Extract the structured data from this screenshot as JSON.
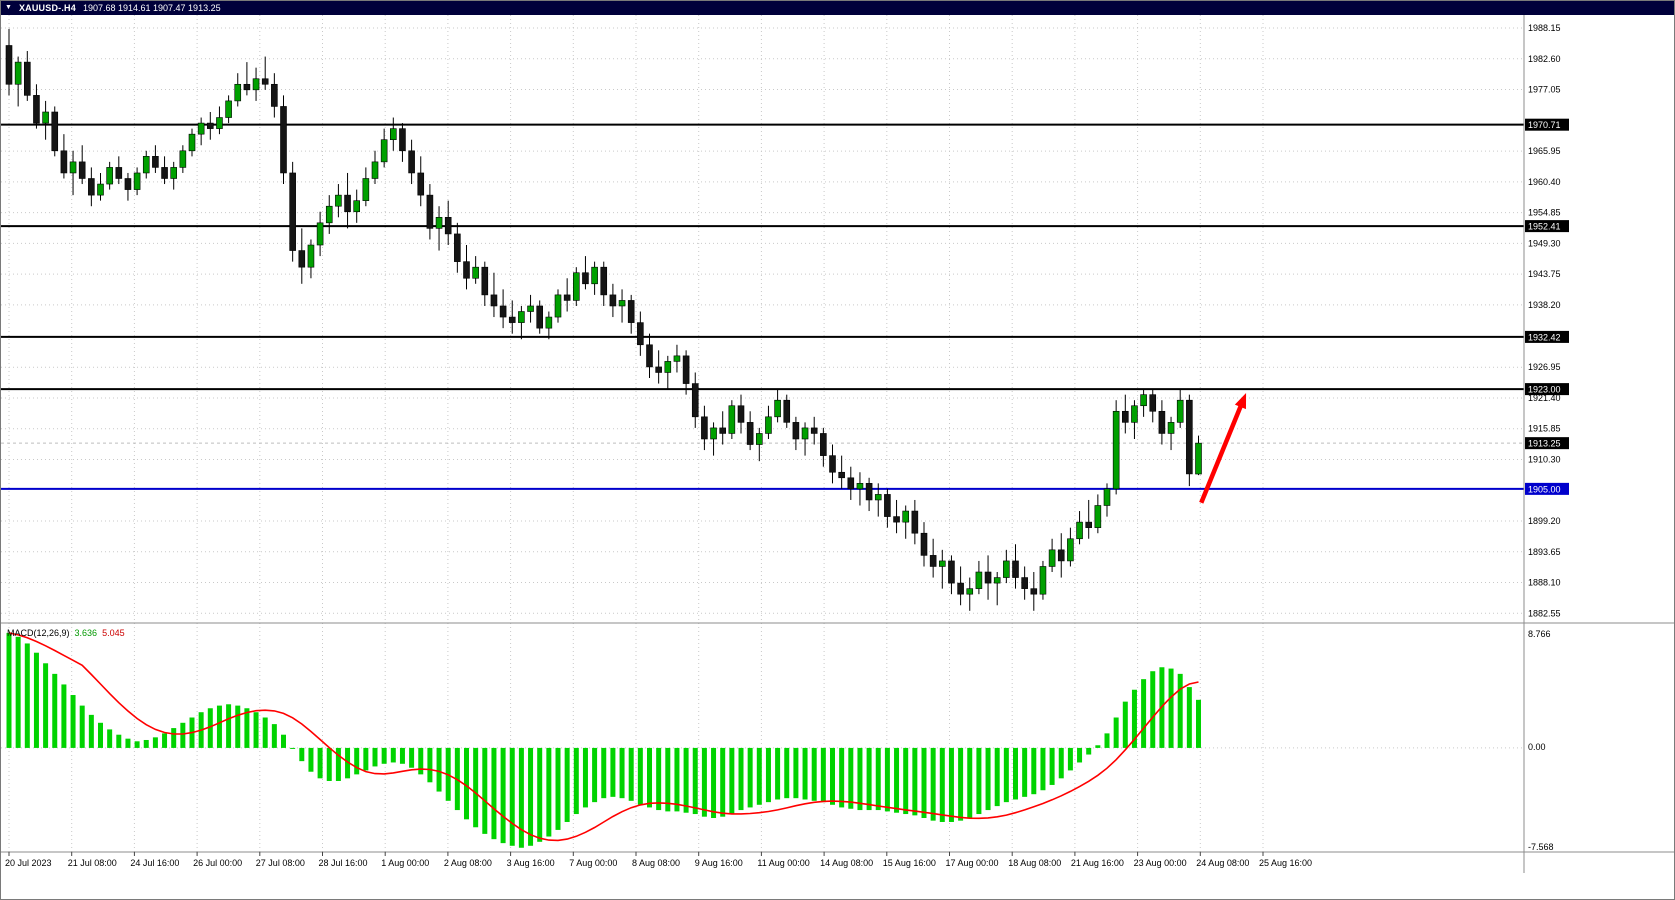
{
  "title_bar": {
    "symbol": "XAUUSD-.H4",
    "ohlc_text": "1907.68 1914.61 1907.47 1913.25"
  },
  "colors": {
    "title_bg": "#00003b",
    "bull": "#00a000",
    "bear": "#151515",
    "wick": "#000000",
    "grid": "#c9c9c9",
    "level_black": "#000000",
    "level_blue": "#0000cc",
    "bid_line": "#bdbdbd",
    "histogram": "#00d300",
    "signal": "#ff0000",
    "arrow": "#ff0000",
    "axis_text": "#000000",
    "box_text": "#ffffff",
    "separator": "#8c8c8c"
  },
  "chart_data": [
    {
      "type": "candlestick",
      "symbol": "XAUUSD-",
      "timeframe": "H4",
      "current_ohlc": {
        "open": 1907.68,
        "high": 1914.61,
        "low": 1907.47,
        "close": 1913.25
      },
      "y_axis": {
        "range": [
          1880.8,
          1990.5
        ],
        "ticks": [
          1988.15,
          1982.6,
          1977.05,
          1965.95,
          1960.4,
          1954.85,
          1949.3,
          1943.75,
          1938.2,
          1926.95,
          1921.4,
          1915.85,
          1910.3,
          1899.2,
          1893.65,
          1888.1,
          1882.55
        ]
      },
      "x_axis": {
        "labels": [
          "20 Jul 2023",
          "21 Jul 08:00",
          "24 Jul 16:00",
          "26 Jul 00:00",
          "27 Jul 08:00",
          "28 Jul 16:00",
          "1 Aug 00:00",
          "2 Aug 08:00",
          "3 Aug 16:00",
          "7 Aug 00:00",
          "8 Aug 08:00",
          "9 Aug 16:00",
          "11 Aug 00:00",
          "14 Aug 08:00",
          "15 Aug 16:00",
          "17 Aug 00:00",
          "18 Aug 08:00",
          "21 Aug 16:00",
          "23 Aug 00:00",
          "24 Aug 08:00",
          "25 Aug 16:00"
        ]
      },
      "h_lines": [
        {
          "price": 1970.71,
          "color": "#000000"
        },
        {
          "price": 1952.41,
          "color": "#000000"
        },
        {
          "price": 1932.42,
          "color": "#000000"
        },
        {
          "price": 1923.0,
          "color": "#000000"
        },
        {
          "price": 1905.0,
          "color": "#0000cc"
        }
      ],
      "bid_price": 1913.25,
      "annotation_arrow": {
        "from_candle": 130.3,
        "from_price": 1902.5,
        "to_candle": 135.2,
        "to_price": 1922.3,
        "color": "#ff0000"
      },
      "candles": [
        [
          1985,
          1988,
          1976,
          1978
        ],
        [
          1978,
          1983,
          1974,
          1982
        ],
        [
          1982,
          1984,
          1975,
          1976
        ],
        [
          1976,
          1978,
          1970,
          1971
        ],
        [
          1971,
          1975,
          1968,
          1973
        ],
        [
          1973,
          1974,
          1965,
          1966
        ],
        [
          1966,
          1969,
          1961,
          1962
        ],
        [
          1962,
          1966,
          1958,
          1964
        ],
        [
          1964,
          1967,
          1960,
          1961
        ],
        [
          1961,
          1963,
          1956,
          1958
        ],
        [
          1958,
          1962,
          1957,
          1960
        ],
        [
          1960,
          1964,
          1959,
          1963
        ],
        [
          1963,
          1965,
          1960,
          1961
        ],
        [
          1961,
          1962,
          1957,
          1959
        ],
        [
          1959,
          1963,
          1958,
          1962
        ],
        [
          1962,
          1966,
          1961,
          1965
        ],
        [
          1965,
          1967,
          1962,
          1963
        ],
        [
          1963,
          1965,
          1960,
          1961
        ],
        [
          1961,
          1964,
          1959,
          1963
        ],
        [
          1963,
          1967,
          1962,
          1966
        ],
        [
          1966,
          1970,
          1965,
          1969
        ],
        [
          1969,
          1972,
          1967,
          1971
        ],
        [
          1971,
          1973,
          1968,
          1970
        ],
        [
          1970,
          1974,
          1969,
          1972
        ],
        [
          1972,
          1976,
          1971,
          1975
        ],
        [
          1975,
          1980,
          1974,
          1978
        ],
        [
          1978,
          1982,
          1976,
          1977
        ],
        [
          1977,
          1981,
          1975,
          1979
        ],
        [
          1979,
          1983,
          1977,
          1978
        ],
        [
          1978,
          1980,
          1972,
          1974
        ],
        [
          1974,
          1976,
          1960,
          1962
        ],
        [
          1962,
          1964,
          1946,
          1948
        ],
        [
          1948,
          1952,
          1942,
          1945
        ],
        [
          1945,
          1950,
          1943,
          1949
        ],
        [
          1949,
          1955,
          1947,
          1953
        ],
        [
          1953,
          1958,
          1951,
          1956
        ],
        [
          1956,
          1960,
          1954,
          1958
        ],
        [
          1958,
          1962,
          1952,
          1955
        ],
        [
          1955,
          1959,
          1953,
          1957
        ],
        [
          1957,
          1963,
          1956,
          1961
        ],
        [
          1961,
          1966,
          1960,
          1964
        ],
        [
          1964,
          1970,
          1963,
          1968
        ],
        [
          1968,
          1972,
          1966,
          1970
        ],
        [
          1970,
          1971,
          1964,
          1966
        ],
        [
          1966,
          1968,
          1960,
          1962
        ],
        [
          1962,
          1965,
          1956,
          1958
        ],
        [
          1958,
          1960,
          1950,
          1952
        ],
        [
          1952,
          1956,
          1948,
          1954
        ],
        [
          1954,
          1957,
          1949,
          1951
        ],
        [
          1951,
          1953,
          1944,
          1946
        ],
        [
          1946,
          1949,
          1941,
          1943
        ],
        [
          1943,
          1947,
          1942,
          1945
        ],
        [
          1945,
          1946,
          1938,
          1940
        ],
        [
          1940,
          1944,
          1936,
          1938
        ],
        [
          1938,
          1941,
          1934,
          1936
        ],
        [
          1936,
          1939,
          1933,
          1935
        ],
        [
          1935,
          1938,
          1932,
          1937
        ],
        [
          1937,
          1940,
          1935,
          1938
        ],
        [
          1938,
          1939,
          1933,
          1934
        ],
        [
          1934,
          1937,
          1932,
          1936
        ],
        [
          1936,
          1941,
          1935,
          1940
        ],
        [
          1940,
          1943,
          1937,
          1939
        ],
        [
          1939,
          1945,
          1938,
          1944
        ],
        [
          1944,
          1947,
          1941,
          1942
        ],
        [
          1942,
          1946,
          1940,
          1945
        ],
        [
          1945,
          1946,
          1938,
          1940
        ],
        [
          1940,
          1942,
          1936,
          1938
        ],
        [
          1938,
          1941,
          1935,
          1939
        ],
        [
          1939,
          1940,
          1933,
          1935
        ],
        [
          1935,
          1937,
          1929,
          1931
        ],
        [
          1931,
          1933,
          1925,
          1927
        ],
        [
          1927,
          1930,
          1924,
          1926
        ],
        [
          1926,
          1929,
          1923,
          1928
        ],
        [
          1928,
          1931,
          1926,
          1929
        ],
        [
          1929,
          1930,
          1922,
          1924
        ],
        [
          1924,
          1926,
          1916,
          1918
        ],
        [
          1918,
          1920,
          1912,
          1914
        ],
        [
          1914,
          1917,
          1911,
          1916
        ],
        [
          1916,
          1919,
          1913,
          1915
        ],
        [
          1915,
          1921,
          1914,
          1920
        ],
        [
          1920,
          1922,
          1915,
          1917
        ],
        [
          1917,
          1919,
          1912,
          1913
        ],
        [
          1913,
          1916,
          1910,
          1915
        ],
        [
          1915,
          1920,
          1914,
          1918
        ],
        [
          1918,
          1923,
          1917,
          1921
        ],
        [
          1921,
          1922,
          1916,
          1917
        ],
        [
          1917,
          1918,
          1912,
          1914
        ],
        [
          1914,
          1917,
          1911,
          1916
        ],
        [
          1916,
          1918,
          1913,
          1915
        ],
        [
          1915,
          1916,
          1909,
          1911
        ],
        [
          1911,
          1913,
          1906,
          1908
        ],
        [
          1908,
          1911,
          1905,
          1907
        ],
        [
          1907,
          1909,
          1903,
          1905
        ],
        [
          1905,
          1908,
          1902,
          1906
        ],
        [
          1906,
          1907,
          1901,
          1903
        ],
        [
          1903,
          1906,
          1900,
          1904
        ],
        [
          1904,
          1905,
          1898,
          1900
        ],
        [
          1900,
          1903,
          1897,
          1899
        ],
        [
          1899,
          1902,
          1896,
          1901
        ],
        [
          1901,
          1903,
          1895,
          1897
        ],
        [
          1897,
          1899,
          1891,
          1893
        ],
        [
          1893,
          1896,
          1889,
          1891
        ],
        [
          1891,
          1894,
          1887,
          1892
        ],
        [
          1892,
          1893,
          1886,
          1888
        ],
        [
          1888,
          1891,
          1884,
          1886
        ],
        [
          1886,
          1889,
          1883,
          1887
        ],
        [
          1887,
          1892,
          1886,
          1890
        ],
        [
          1890,
          1893,
          1885,
          1888
        ],
        [
          1888,
          1890,
          1884,
          1889
        ],
        [
          1889,
          1894,
          1888,
          1892
        ],
        [
          1892,
          1895,
          1887,
          1889
        ],
        [
          1889,
          1891,
          1885,
          1887
        ],
        [
          1887,
          1890,
          1883,
          1886
        ],
        [
          1886,
          1892,
          1885,
          1891
        ],
        [
          1891,
          1896,
          1890,
          1894
        ],
        [
          1894,
          1897,
          1889,
          1892
        ],
        [
          1892,
          1898,
          1891,
          1896
        ],
        [
          1896,
          1901,
          1895,
          1899
        ],
        [
          1899,
          1903,
          1896,
          1898
        ],
        [
          1898,
          1904,
          1897,
          1902
        ],
        [
          1902,
          1906,
          1900,
          1905
        ],
        [
          1905,
          1921,
          1904,
          1919
        ],
        [
          1919,
          1922,
          1915,
          1917
        ],
        [
          1917,
          1921,
          1914,
          1920
        ],
        [
          1920,
          1923,
          1918,
          1922
        ],
        [
          1922,
          1923,
          1917,
          1919
        ],
        [
          1919,
          1921,
          1913,
          1915
        ],
        [
          1915,
          1918,
          1912,
          1917
        ],
        [
          1917,
          1923,
          1916,
          1921
        ],
        [
          1921,
          1922,
          1905.5,
          1907.7
        ],
        [
          1907.68,
          1914.61,
          1907.47,
          1913.25
        ]
      ]
    },
    {
      "type": "bar",
      "name": "MACD(12,26,9)",
      "values_text": {
        "macd": "3.636",
        "signal": "5.045"
      },
      "current_values": {
        "macd": 3.636,
        "signal": 5.045
      },
      "y_axis": {
        "range": [
          -7.568,
          8.766
        ],
        "ticks": [
          {
            "v": 8.766,
            "label": "8.766"
          },
          {
            "v": 0,
            "label": "0.00"
          },
          {
            "v": -7.568,
            "label": "-7.568"
          }
        ]
      },
      "histogram": [
        8.7,
        8.4,
        7.9,
        7.2,
        6.4,
        5.6,
        4.8,
        4.0,
        3.2,
        2.5,
        1.9,
        1.4,
        1.0,
        0.7,
        0.5,
        0.6,
        0.8,
        1.1,
        1.5,
        1.9,
        2.3,
        2.7,
        3.0,
        3.2,
        3.3,
        3.2,
        3.0,
        2.7,
        2.3,
        1.8,
        1.0,
        0.0,
        -1.0,
        -1.8,
        -2.3,
        -2.5,
        -2.5,
        -2.3,
        -2.0,
        -1.7,
        -1.4,
        -1.2,
        -1.1,
        -1.2,
        -1.5,
        -2.0,
        -2.6,
        -3.3,
        -4.0,
        -4.7,
        -5.4,
        -6.0,
        -6.5,
        -6.9,
        -7.2,
        -7.4,
        -7.55,
        -7.4,
        -7.1,
        -6.7,
        -6.2,
        -5.6,
        -5.0,
        -4.5,
        -4.1,
        -3.8,
        -3.7,
        -3.8,
        -4.0,
        -4.3,
        -4.5,
        -4.7,
        -4.8,
        -4.8,
        -4.9,
        -5.0,
        -5.2,
        -5.3,
        -5.2,
        -5.0,
        -4.7,
        -4.5,
        -4.3,
        -4.1,
        -3.9,
        -3.8,
        -3.8,
        -3.9,
        -4.0,
        -4.1,
        -4.3,
        -4.5,
        -4.6,
        -4.7,
        -4.7,
        -4.7,
        -4.8,
        -4.9,
        -5.0,
        -5.1,
        -5.3,
        -5.5,
        -5.6,
        -5.6,
        -5.5,
        -5.3,
        -5.0,
        -4.7,
        -4.4,
        -4.1,
        -3.9,
        -3.7,
        -3.5,
        -3.2,
        -2.8,
        -2.3,
        -1.7,
        -1.1,
        -0.5,
        0.2,
        1.1,
        2.3,
        3.5,
        4.4,
        5.2,
        5.8,
        6.1,
        6.0,
        5.6,
        4.6,
        3.636
      ]
    }
  ]
}
